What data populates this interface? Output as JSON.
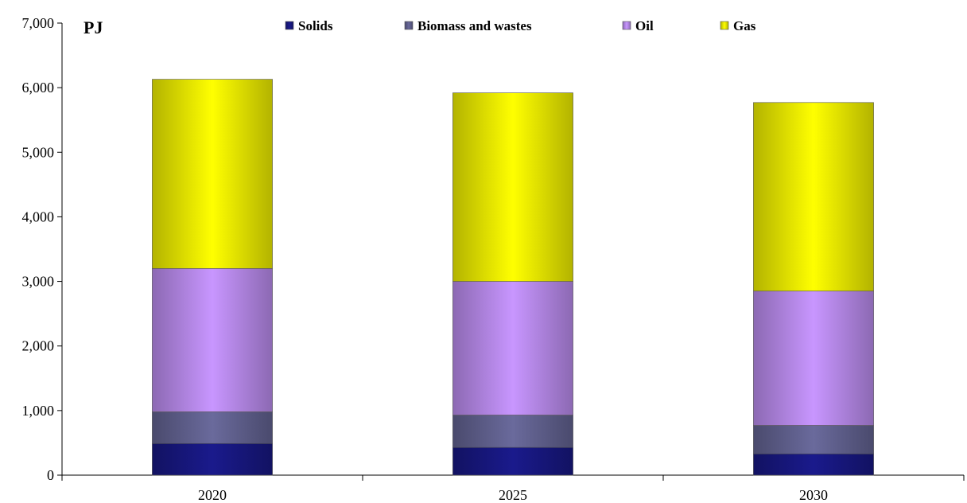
{
  "chart_data": {
    "type": "bar",
    "stacked": true,
    "unit_label": "PJ",
    "categories": [
      "2020",
      "2025",
      "2030"
    ],
    "series": [
      {
        "name": "Solids",
        "values": [
          490,
          430,
          330
        ],
        "color": "#1a1a8c"
      },
      {
        "name": "Biomass and wastes",
        "values": [
          490,
          500,
          440
        ],
        "color": "#6a6a9c"
      },
      {
        "name": "Oil",
        "values": [
          2220,
          2070,
          2080
        ],
        "color": "#c896ff"
      },
      {
        "name": "Gas",
        "values": [
          2930,
          2920,
          2920
        ],
        "color": "#ffff00"
      }
    ],
    "ylim": [
      0,
      7000
    ],
    "yticks": [
      "0",
      "1,000",
      "2,000",
      "3,000",
      "4,000",
      "5,000",
      "6,000",
      "7,000"
    ],
    "legend_position": "top",
    "grid": false
  }
}
